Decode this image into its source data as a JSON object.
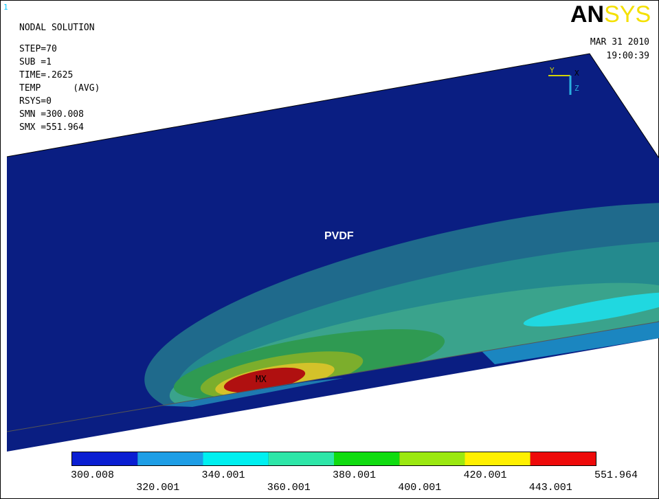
{
  "window_label": "1",
  "info": {
    "title": "NODAL SOLUTION",
    "lines": [
      "STEP=70",
      "SUB =1",
      "TIME=.2625",
      "TEMP      (AVG)",
      "RSYS=0",
      "SMN =300.008",
      "SMX =551.964"
    ]
  },
  "logo": {
    "an": "AN",
    "sys": "SYS"
  },
  "date": "MAR 31 2010",
  "time": "19:00:39",
  "triad": {
    "y": "Y",
    "x": "X",
    "z": "Z"
  },
  "model": {
    "material": "PVDF",
    "max_marker": "MX"
  },
  "legend": {
    "colors": [
      "#0a1ed2",
      "#1e9ee6",
      "#00f0f0",
      "#2ee6a8",
      "#10dc10",
      "#9be810",
      "#fff000",
      "#ee0a0a"
    ],
    "labels": [
      "300.008",
      "320.001",
      "340.001",
      "360.001",
      "380.001",
      "400.001",
      "420.001",
      "443.001",
      "551.964"
    ]
  }
}
